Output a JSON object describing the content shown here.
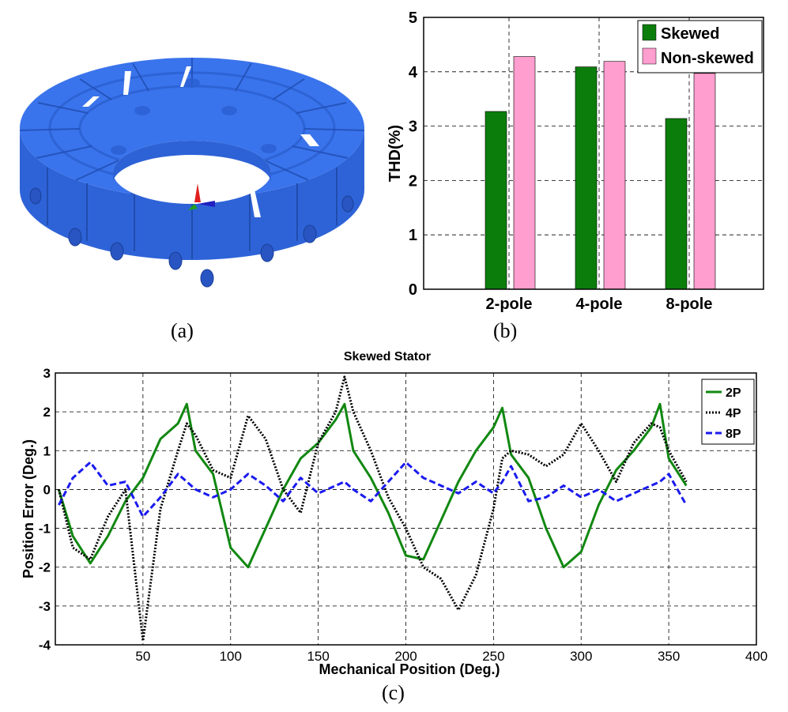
{
  "panels": {
    "a": {
      "caption": "(a)",
      "illustration": "blue-ring-stator-3d-model"
    },
    "b": {
      "caption": "(b)"
    },
    "c": {
      "caption": "(c)"
    }
  },
  "colors": {
    "ring_blue": "#2b68e6",
    "skewed_green": "#0b7d0b",
    "nonskewed_pink": "#ff9ecf",
    "series_2p": "#118811",
    "series_4p": "#000000",
    "series_8p": "#1a1aee"
  },
  "chart_data": [
    {
      "id": "b",
      "type": "bar",
      "title": "",
      "xlabel": "",
      "ylabel": "THD(%)",
      "categories": [
        "2-pole",
        "4-pole",
        "8-pole"
      ],
      "series": [
        {
          "name": "Skewed",
          "values": [
            3.27,
            4.09,
            3.14
          ]
        },
        {
          "name": "Non-skewed",
          "values": [
            4.28,
            4.19,
            3.97
          ]
        }
      ],
      "ylim": [
        0,
        5
      ],
      "yticks": [
        "0",
        "1",
        "2",
        "3",
        "4",
        "5"
      ],
      "grid": true,
      "legend_position": "top-right"
    },
    {
      "id": "c",
      "type": "line",
      "title": "Skewed Stator",
      "xlabel": "Mechanical Position (Deg.)",
      "ylabel": "Position Error (Deg.)",
      "xlim": [
        0,
        400
      ],
      "ylim": [
        -4,
        3
      ],
      "xticks": [
        "50",
        "100",
        "150",
        "200",
        "250",
        "300",
        "350",
        "400"
      ],
      "yticks": [
        "-4",
        "-3",
        "-2",
        "-1",
        "0",
        "1",
        "2",
        "3"
      ],
      "grid": true,
      "legend_position": "top-right",
      "x": [
        2,
        10,
        20,
        30,
        40,
        50,
        60,
        70,
        75,
        80,
        90,
        100,
        110,
        120,
        130,
        140,
        150,
        160,
        165,
        170,
        180,
        190,
        200,
        210,
        220,
        230,
        240,
        250,
        255,
        260,
        270,
        280,
        290,
        300,
        310,
        320,
        330,
        340,
        345,
        350,
        360
      ],
      "series": [
        {
          "name": "2P",
          "values": [
            0.0,
            -1.2,
            -1.9,
            -1.2,
            -0.3,
            0.3,
            1.3,
            1.7,
            2.2,
            1.0,
            0.4,
            -1.5,
            -2.0,
            -1.0,
            0.0,
            0.8,
            1.2,
            1.8,
            2.2,
            1.0,
            0.3,
            -0.6,
            -1.7,
            -1.8,
            -0.8,
            0.2,
            1.0,
            1.6,
            2.1,
            0.9,
            0.3,
            -1.0,
            -2.0,
            -1.6,
            -0.4,
            0.5,
            1.0,
            1.6,
            2.2,
            0.8,
            0.1
          ]
        },
        {
          "name": "4P",
          "values": [
            0.0,
            -1.5,
            -1.8,
            -0.7,
            0.0,
            -3.9,
            -0.5,
            1.0,
            1.7,
            1.4,
            0.5,
            0.3,
            1.9,
            1.3,
            0.0,
            -0.6,
            1.2,
            2.0,
            2.9,
            2.0,
            1.0,
            -0.2,
            -1.0,
            -2.0,
            -2.3,
            -3.1,
            -2.2,
            -0.5,
            0.8,
            1.0,
            0.9,
            0.6,
            0.9,
            1.7,
            1.0,
            0.2,
            1.2,
            1.7,
            1.6,
            1.0,
            0.2
          ]
        },
        {
          "name": "8P",
          "values": [
            -0.4,
            0.3,
            0.7,
            0.1,
            0.2,
            -0.7,
            -0.2,
            0.4,
            0.2,
            0.0,
            -0.2,
            0.0,
            0.4,
            0.1,
            -0.3,
            0.3,
            -0.1,
            0.1,
            0.2,
            0.0,
            -0.3,
            0.2,
            0.7,
            0.3,
            0.1,
            -0.1,
            0.2,
            -0.1,
            0.2,
            0.6,
            -0.3,
            -0.2,
            0.1,
            -0.2,
            0.0,
            -0.3,
            -0.1,
            0.1,
            0.2,
            0.4,
            -0.4
          ]
        }
      ]
    }
  ]
}
